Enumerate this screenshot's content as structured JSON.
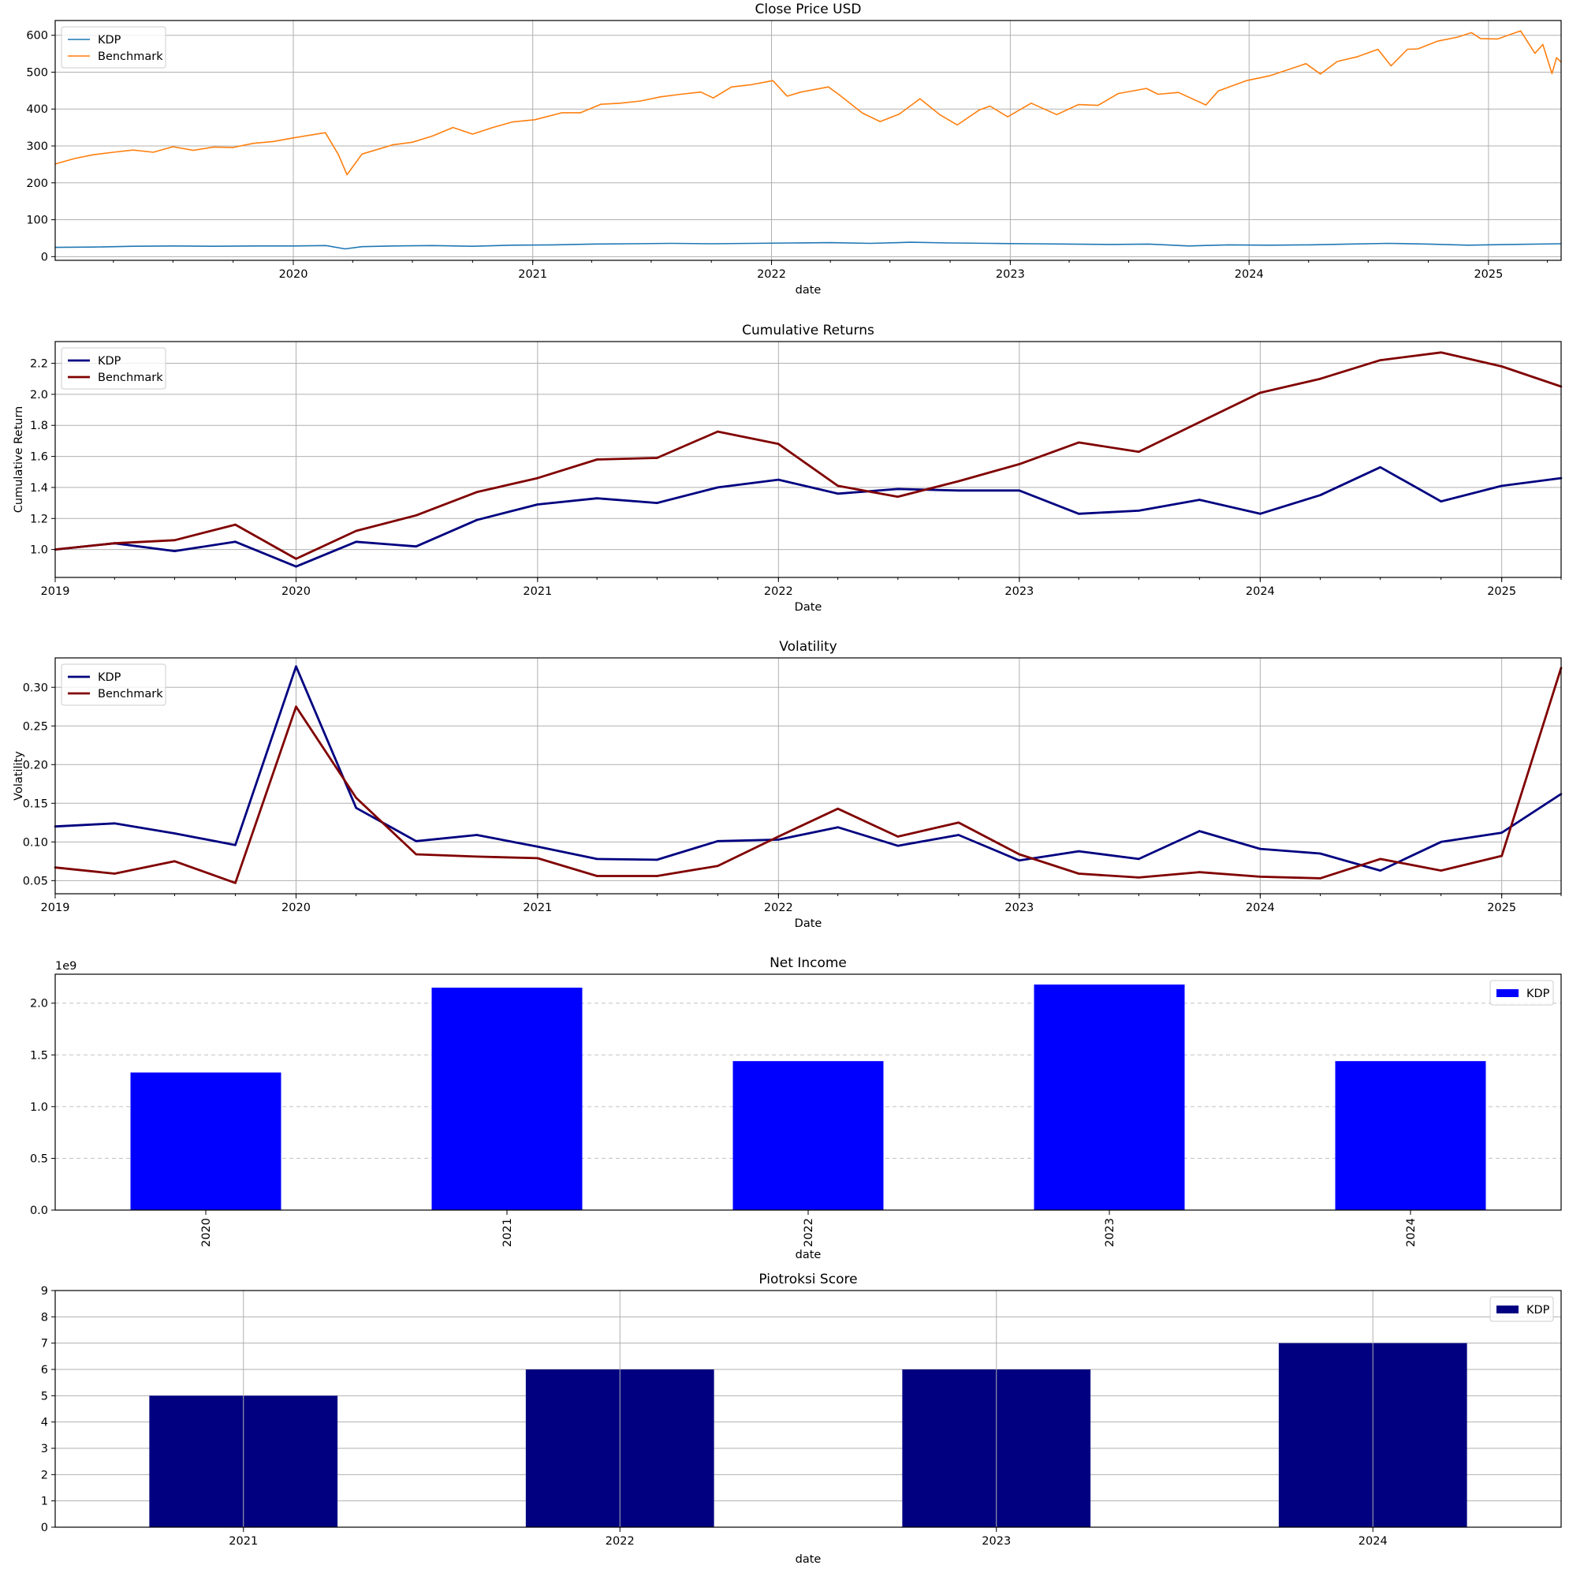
{
  "chart_data": [
    {
      "id": "close",
      "type": "line",
      "title": "Close Price USD",
      "xlabel": "date",
      "ylabel": "",
      "xlim": [
        "2019-01-02",
        "2025-04-22"
      ],
      "ylim": [
        -10,
        640
      ],
      "yticks": [
        0,
        100,
        200,
        300,
        400,
        500,
        600
      ],
      "xticks": [
        "2020",
        "2021",
        "2022",
        "2023",
        "2024",
        "2025"
      ],
      "grid": "both",
      "legend": "top-left",
      "series": [
        {
          "name": "KDP",
          "color": "#1f77b4",
          "points": [
            [
              "2019-01-02",
              25
            ],
            [
              "2019-03-01",
              26
            ],
            [
              "2019-05-01",
              28
            ],
            [
              "2019-07-01",
              29
            ],
            [
              "2019-09-01",
              28
            ],
            [
              "2019-11-01",
              29
            ],
            [
              "2020-01-02",
              29
            ],
            [
              "2020-02-20",
              30
            ],
            [
              "2020-03-20",
              21
            ],
            [
              "2020-04-15",
              27
            ],
            [
              "2020-06-01",
              29
            ],
            [
              "2020-08-01",
              30
            ],
            [
              "2020-10-01",
              28
            ],
            [
              "2020-12-01",
              31
            ],
            [
              "2021-02-01",
              32
            ],
            [
              "2021-04-01",
              34
            ],
            [
              "2021-06-01",
              35
            ],
            [
              "2021-08-01",
              36
            ],
            [
              "2021-10-01",
              35
            ],
            [
              "2021-12-01",
              36
            ],
            [
              "2022-02-01",
              37
            ],
            [
              "2022-04-01",
              38
            ],
            [
              "2022-06-01",
              36
            ],
            [
              "2022-08-01",
              39
            ],
            [
              "2022-10-01",
              37
            ],
            [
              "2022-12-01",
              36
            ],
            [
              "2023-02-01",
              35
            ],
            [
              "2023-04-01",
              34
            ],
            [
              "2023-06-01",
              33
            ],
            [
              "2023-08-01",
              34
            ],
            [
              "2023-10-01",
              29
            ],
            [
              "2023-12-01",
              32
            ],
            [
              "2024-02-01",
              31
            ],
            [
              "2024-04-01",
              32
            ],
            [
              "2024-06-01",
              34
            ],
            [
              "2024-08-01",
              36
            ],
            [
              "2024-10-01",
              34
            ],
            [
              "2024-12-01",
              31
            ],
            [
              "2025-02-01",
              33
            ],
            [
              "2025-04-22",
              35
            ]
          ]
        },
        {
          "name": "Benchmark",
          "color": "#ff7f0e",
          "points": [
            [
              "2019-01-02",
              251
            ],
            [
              "2019-02-01",
              266
            ],
            [
              "2019-03-01",
              276
            ],
            [
              "2019-04-01",
              283
            ],
            [
              "2019-05-01",
              289
            ],
            [
              "2019-06-01",
              283
            ],
            [
              "2019-07-01",
              298
            ],
            [
              "2019-08-01",
              288
            ],
            [
              "2019-09-01",
              297
            ],
            [
              "2019-10-01",
              296
            ],
            [
              "2019-11-01",
              307
            ],
            [
              "2019-12-01",
              312
            ],
            [
              "2020-01-02",
              322
            ],
            [
              "2020-02-19",
              336
            ],
            [
              "2020-03-10",
              276
            ],
            [
              "2020-03-23",
              222
            ],
            [
              "2020-04-15",
              278
            ],
            [
              "2020-06-01",
              303
            ],
            [
              "2020-07-01",
              310
            ],
            [
              "2020-08-01",
              327
            ],
            [
              "2020-09-01",
              350
            ],
            [
              "2020-10-01",
              332
            ],
            [
              "2020-11-01",
              350
            ],
            [
              "2020-12-01",
              365
            ],
            [
              "2021-01-04",
              371
            ],
            [
              "2021-02-15",
              390
            ],
            [
              "2021-03-15",
              390
            ],
            [
              "2021-04-15",
              413
            ],
            [
              "2021-05-15",
              416
            ],
            [
              "2021-06-15",
              422
            ],
            [
              "2021-07-15",
              433
            ],
            [
              "2021-08-15",
              440
            ],
            [
              "2021-09-15",
              446
            ],
            [
              "2021-10-04",
              430
            ],
            [
              "2021-11-01",
              460
            ],
            [
              "2021-12-01",
              466
            ],
            [
              "2022-01-03",
              477
            ],
            [
              "2022-01-25",
              435
            ],
            [
              "2022-02-15",
              446
            ],
            [
              "2022-03-29",
              460
            ],
            [
              "2022-04-15",
              438
            ],
            [
              "2022-05-20",
              389
            ],
            [
              "2022-06-16",
              366
            ],
            [
              "2022-07-15",
              386
            ],
            [
              "2022-08-16",
              428
            ],
            [
              "2022-09-15",
              385
            ],
            [
              "2022-10-12",
              357
            ],
            [
              "2022-11-15",
              398
            ],
            [
              "2022-12-01",
              408
            ],
            [
              "2022-12-28",
              379
            ],
            [
              "2023-02-02",
              416
            ],
            [
              "2023-03-13",
              385
            ],
            [
              "2023-04-15",
              412
            ],
            [
              "2023-05-15",
              410
            ],
            [
              "2023-06-15",
              442
            ],
            [
              "2023-07-28",
              456
            ],
            [
              "2023-08-15",
              440
            ],
            [
              "2023-09-15",
              445
            ],
            [
              "2023-10-27",
              411
            ],
            [
              "2023-11-15",
              449
            ],
            [
              "2023-12-28",
              477
            ],
            [
              "2024-02-01",
              490
            ],
            [
              "2024-03-28",
              523
            ],
            [
              "2024-04-19",
              495
            ],
            [
              "2024-05-15",
              529
            ],
            [
              "2024-06-15",
              542
            ],
            [
              "2024-07-16",
              562
            ],
            [
              "2024-08-05",
              517
            ],
            [
              "2024-08-30",
              562
            ],
            [
              "2024-09-15",
              563
            ],
            [
              "2024-10-15",
              584
            ],
            [
              "2024-11-15",
              595
            ],
            [
              "2024-12-06",
              607
            ],
            [
              "2024-12-20",
              591
            ],
            [
              "2025-01-15",
              590
            ],
            [
              "2025-02-19",
              612
            ],
            [
              "2025-03-13",
              551
            ],
            [
              "2025-03-25",
              575
            ],
            [
              "2025-04-08",
              496
            ],
            [
              "2025-04-15",
              539
            ],
            [
              "2025-04-22",
              527
            ]
          ]
        }
      ]
    },
    {
      "id": "cumret",
      "type": "line",
      "title": "Cumulative Returns",
      "xlabel": "Date",
      "ylabel": "Cumulative Return",
      "xlim": [
        "2019-01-01",
        "2025-04-01"
      ],
      "ylim": [
        0.82,
        2.34
      ],
      "yticks": [
        1.0,
        1.2,
        1.4,
        1.6,
        1.8,
        2.0,
        2.2
      ],
      "yticklabels": [
        "1.0",
        "1.2",
        "1.4",
        "1.6",
        "1.8",
        "2.0",
        "2.2"
      ],
      "xticks": [
        "2019",
        "2020",
        "2021",
        "2022",
        "2023",
        "2024",
        "2025"
      ],
      "grid": "both",
      "legend": "top-left",
      "x": [
        "2019-01-01",
        "2019-04-01",
        "2019-07-01",
        "2019-10-01",
        "2020-01-01",
        "2020-04-01",
        "2020-07-01",
        "2020-10-01",
        "2021-01-01",
        "2021-04-01",
        "2021-07-01",
        "2021-10-01",
        "2022-01-01",
        "2022-04-01",
        "2022-07-01",
        "2022-10-01",
        "2023-01-01",
        "2023-04-01",
        "2023-07-01",
        "2023-10-01",
        "2024-01-01",
        "2024-04-01",
        "2024-07-01",
        "2024-10-01",
        "2025-01-01",
        "2025-04-01"
      ],
      "series": [
        {
          "name": "KDP",
          "color": "#000080",
          "values": [
            1.0,
            1.04,
            0.99,
            1.05,
            0.89,
            1.05,
            1.02,
            1.19,
            1.29,
            1.33,
            1.3,
            1.4,
            1.45,
            1.36,
            1.39,
            1.38,
            1.38,
            1.23,
            1.25,
            1.32,
            1.23,
            1.35,
            1.53,
            1.31,
            1.41,
            1.46
          ]
        },
        {
          "name": "Benchmark",
          "color": "#800000",
          "values": [
            1.0,
            1.04,
            1.06,
            1.16,
            0.94,
            1.12,
            1.22,
            1.37,
            1.46,
            1.58,
            1.59,
            1.76,
            1.68,
            1.41,
            1.34,
            1.44,
            1.55,
            1.69,
            1.63,
            1.82,
            2.01,
            2.1,
            2.22,
            2.27,
            2.18,
            2.05
          ]
        }
      ]
    },
    {
      "id": "vol",
      "type": "line",
      "title": "Volatility",
      "xlabel": "Date",
      "ylabel": "Volatility",
      "xlim": [
        "2019-01-01",
        "2025-04-01"
      ],
      "ylim": [
        0.033,
        0.338
      ],
      "yticks": [
        0.05,
        0.1,
        0.15,
        0.2,
        0.25,
        0.3
      ],
      "yticklabels": [
        "0.05",
        "0.10",
        "0.15",
        "0.20",
        "0.25",
        "0.30"
      ],
      "xticks": [
        "2019",
        "2020",
        "2021",
        "2022",
        "2023",
        "2024",
        "2025"
      ],
      "grid": "both",
      "legend": "top-left",
      "x": [
        "2019-01-01",
        "2019-04-01",
        "2019-07-01",
        "2019-10-01",
        "2020-01-01",
        "2020-04-01",
        "2020-07-01",
        "2020-10-01",
        "2021-01-01",
        "2021-04-01",
        "2021-07-01",
        "2021-10-01",
        "2022-01-01",
        "2022-04-01",
        "2022-07-01",
        "2022-10-01",
        "2023-01-01",
        "2023-04-01",
        "2023-07-01",
        "2023-10-01",
        "2024-01-01",
        "2024-04-01",
        "2024-07-01",
        "2024-10-01",
        "2025-01-01",
        "2025-04-01"
      ],
      "series": [
        {
          "name": "KDP",
          "color": "#000080",
          "values": [
            0.12,
            0.124,
            0.111,
            0.096,
            0.327,
            0.144,
            0.101,
            0.109,
            0.094,
            0.078,
            0.077,
            0.101,
            0.103,
            0.119,
            0.095,
            0.109,
            0.076,
            0.088,
            0.078,
            0.114,
            0.091,
            0.085,
            0.063,
            0.1,
            0.112,
            0.162
          ]
        },
        {
          "name": "Benchmark",
          "color": "#800000",
          "values": [
            0.067,
            0.059,
            0.075,
            0.047,
            0.275,
            0.157,
            0.084,
            0.081,
            0.079,
            0.056,
            0.056,
            0.069,
            0.107,
            0.143,
            0.107,
            0.125,
            0.084,
            0.059,
            0.054,
            0.061,
            0.055,
            0.053,
            0.078,
            0.063,
            0.082,
            0.325
          ]
        }
      ]
    },
    {
      "id": "netincome",
      "type": "bar",
      "title": "Net Income",
      "xlabel": "date",
      "ylabel": "",
      "offset_label": "1e9",
      "categories": [
        "2020",
        "2021",
        "2022",
        "2023",
        "2024"
      ],
      "ylim": [
        0,
        2.28
      ],
      "yticks": [
        0.0,
        0.5,
        1.0,
        1.5,
        2.0
      ],
      "yticklabels": [
        "0.0",
        "0.5",
        "1.0",
        "1.5",
        "2.0"
      ],
      "grid": "y-dashed",
      "legend": "top-right",
      "xtick_rotation": "vertical",
      "series": [
        {
          "name": "KDP",
          "color": "#0000ff",
          "values": [
            1.33,
            2.15,
            1.44,
            2.18,
            1.44
          ]
        }
      ]
    },
    {
      "id": "piotroski",
      "type": "bar",
      "title": "Piotroksi Score",
      "xlabel": "date",
      "ylabel": "",
      "categories": [
        "2021",
        "2022",
        "2023",
        "2024"
      ],
      "ylim": [
        0,
        9
      ],
      "yticks": [
        0,
        1,
        2,
        3,
        4,
        5,
        6,
        7,
        8,
        9
      ],
      "yticklabels": [
        "0",
        "1",
        "2",
        "3",
        "4",
        "5",
        "6",
        "7",
        "8",
        "9"
      ],
      "grid": "both",
      "legend": "top-right",
      "series": [
        {
          "name": "KDP",
          "color": "#000080",
          "values": [
            5,
            6,
            6,
            7
          ]
        }
      ]
    }
  ]
}
